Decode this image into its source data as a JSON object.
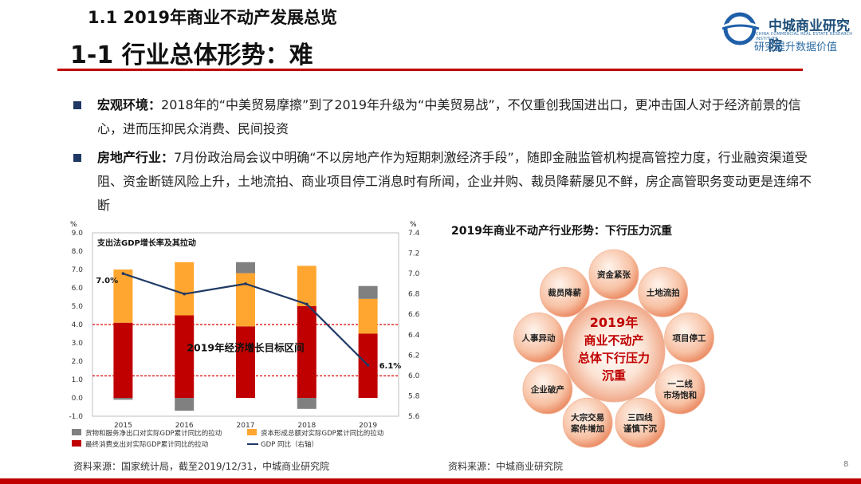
{
  "header": {
    "section_title": "1.1  2019年商业不动产发展总览",
    "page_title": "1-1  行业总体形势：难",
    "logo_name": "中城商业研究院",
    "logo_sub": "CHINA COMMERCIAL REAL ESTATE RESEARCH INSTITUTE",
    "logo_slogan": "研究提升数据价值"
  },
  "bullets": [
    {
      "label": "宏观环境：",
      "text": "2018年的“中美贸易摩擦”到了2019年升级为“中美贸易战”，不仅重创我国进出口，更冲击国人对于经济前景的信心，进而压抑民众消费、民间投资"
    },
    {
      "label": "房地产行业：",
      "text": "7月份政治局会议中明确“不以房地产作为短期刺激经济手段”，随即金融监管机构提高管控力度，行业融资渠道受阻、资金断链风险上升，土地流拍、商业项目停工消息时有所闻，企业并购、裁员降薪屡见不鲜，房企高管职务变动更是连绵不断"
    }
  ],
  "chart_data": {
    "type": "bar",
    "title": "支出法GDP增长率及其拉动",
    "categories": [
      "2015",
      "2016",
      "2017",
      "2018",
      "2019"
    ],
    "left_unit": "%",
    "right_unit": "%",
    "ylim": [
      -1.0,
      9.0
    ],
    "yticks": [
      "9.0",
      "8.0",
      "7.0",
      "6.0",
      "5.0",
      "4.0",
      "3.0",
      "2.0",
      "1.0",
      "0.0",
      "-1.0"
    ],
    "y2lim": [
      5.6,
      7.4
    ],
    "y2ticks": [
      "7.4",
      "7.2",
      "7.0",
      "6.8",
      "6.6",
      "6.4",
      "6.2",
      "6.0",
      "5.8",
      "5.6"
    ],
    "series": [
      {
        "name": "货物和服务净出口对实际GDP累计同比的拉动",
        "color": "#808080",
        "values": [
          -0.1,
          -0.7,
          0.6,
          -0.6,
          0.7
        ]
      },
      {
        "name": "资本形成总额对实际GDP累计同比的拉动",
        "color": "#ffa630",
        "values": [
          2.9,
          2.9,
          2.9,
          2.2,
          1.9
        ]
      },
      {
        "name": "最终消费支出对实际GDP累计同比的拉动",
        "color": "#c00000",
        "values": [
          4.1,
          4.5,
          3.9,
          5.0,
          3.5
        ]
      },
      {
        "name": "GDP 同比（右轴）",
        "color": "#1f3864",
        "axis": "right",
        "values": [
          7.0,
          6.8,
          6.9,
          6.7,
          6.1
        ]
      }
    ],
    "target_band": [
      1.2,
      4.0
    ],
    "annotations": [
      {
        "text": "7.0%"
      },
      {
        "text": "6.1%"
      },
      {
        "text": "2019年经济增长目标区间"
      }
    ],
    "source": "资料来源：国家统计局，截至2019/12/31，中城商业研究院"
  },
  "diagram": {
    "title": "2019年商业不动产行业形势：下行压力沉重",
    "center_label": "2019年\n商业不动产\n总体下行压力\n沉重",
    "center_lines": [
      "2019年",
      "商业不动产",
      "总体下行压力",
      "沉重"
    ],
    "factors": [
      {
        "lines": [
          "资金紧张"
        ]
      },
      {
        "lines": [
          "土地流拍"
        ]
      },
      {
        "lines": [
          "项目停工"
        ]
      },
      {
        "lines": [
          "一二线",
          "市场饱和"
        ]
      },
      {
        "lines": [
          "三四线",
          "谨慎下沉"
        ]
      },
      {
        "lines": [
          "大宗交易",
          "案件增加"
        ]
      },
      {
        "lines": [
          "企业破产"
        ]
      },
      {
        "lines": [
          "人事异动"
        ]
      },
      {
        "lines": [
          "裁员降薪"
        ]
      }
    ],
    "source": "资料来源：中城商业研究院"
  },
  "footer": {
    "page_number": "8"
  },
  "colors": {
    "accent_red": "#c00000",
    "navy": "#1f3864",
    "orange": "#ffa630",
    "gray": "#808080"
  }
}
